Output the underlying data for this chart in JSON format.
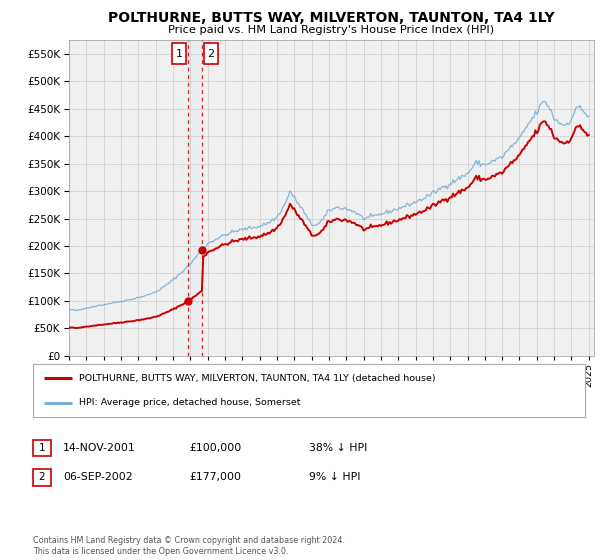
{
  "title": "POLTHURNE, BUTTS WAY, MILVERTON, TAUNTON, TA4 1LY",
  "subtitle": "Price paid vs. HM Land Registry's House Price Index (HPI)",
  "legend_line1": "POLTHURNE, BUTTS WAY, MILVERTON, TAUNTON, TA4 1LY (detached house)",
  "legend_line2": "HPI: Average price, detached house, Somerset",
  "t1_date": "14-NOV-2001",
  "t1_price": 100000,
  "t1_hpi_text": "38% ↓ HPI",
  "t1_year": 2001.875,
  "t2_date": "06-SEP-2002",
  "t2_price": 177000,
  "t2_hpi_text": "9% ↓ HPI",
  "t2_year": 2002.667,
  "copyright": "Contains HM Land Registry data © Crown copyright and database right 2024.\nThis data is licensed under the Open Government Licence v3.0.",
  "red_color": "#cc0000",
  "blue_color": "#7bafd4",
  "grid_color": "#cccccc",
  "chart_bg": "#f0f0f0",
  "ylim_max": 575000,
  "xlim_start": 1995.0,
  "xlim_end": 2025.3
}
